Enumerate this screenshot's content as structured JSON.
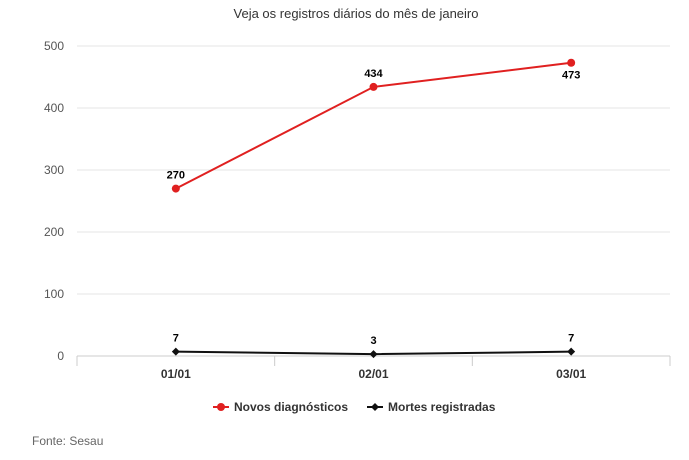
{
  "chart_data": {
    "type": "line",
    "title": "Veja os registros diários do mês de janeiro",
    "categories": [
      "01/01",
      "02/01",
      "03/01"
    ],
    "ylim": [
      0,
      500
    ],
    "yticks": [
      0,
      100,
      200,
      300,
      400,
      500
    ],
    "grid": true,
    "legend": "bottom-center",
    "series": [
      {
        "name": "Novos diagnósticos",
        "values": [
          270,
          434,
          473
        ],
        "color": "#e02020",
        "marker": "circle"
      },
      {
        "name": "Mortes registradas",
        "values": [
          7,
          3,
          7
        ],
        "color": "#111111",
        "marker": "diamond"
      }
    ]
  },
  "source": "Fonte: Sesau"
}
